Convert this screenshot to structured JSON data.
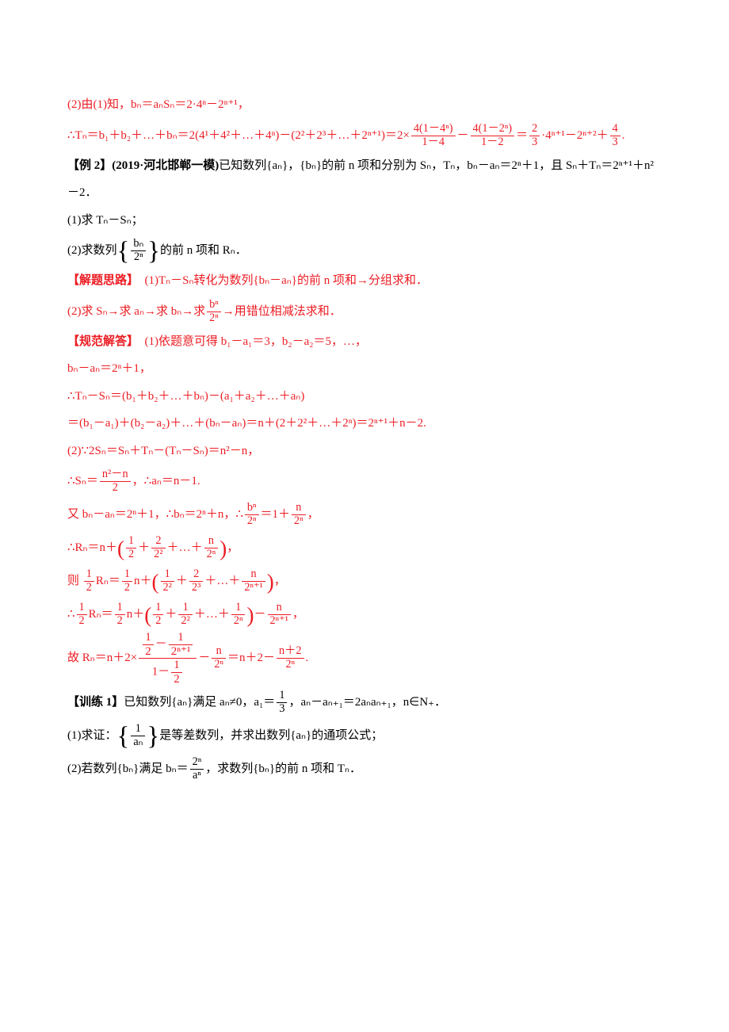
{
  "colors": {
    "red": "#ec1d24",
    "black": "#000000",
    "background": "#ffffff"
  },
  "typography": {
    "base_fontsize": 15,
    "font_family": "SimSun/宋体",
    "line_height": 2.3,
    "sub_sup_scale": 0.7
  },
  "content": {
    "l1": "(2)由(1)知，bₙ＝aₙSₙ＝2·4ⁿ－2ⁿ⁺¹，",
    "l2_prefix": "∴Tₙ＝b₁＋b₂＋…＋bₙ＝2(4¹＋4²＋…＋4ⁿ)－(2²＋2³＋…＋2ⁿ⁺¹)＝2×",
    "l2_f1_num": "4(1－4ⁿ)",
    "l2_f1_den": "1－4",
    "l2_mid1": "－",
    "l2_f2_num": "4(1－2ⁿ)",
    "l2_f2_den": "1－2",
    "l2_mid2": "＝",
    "l2_f3_num": "2",
    "l2_f3_den": "3",
    "l2_mid3": "·4ⁿ⁺¹－2ⁿ⁺²＋",
    "l2_f4_num": "4",
    "l2_f4_den": "3",
    "l2_tail": ".",
    "ex2_label": "【例 2】(2019·河北邯郸一模)",
    "ex2_body1": "已知数列{aₙ}，{bₙ}的前 n 项和分别为 Sₙ，Tₙ，bₙ－aₙ＝2ⁿ＋1，且 Sₙ＋Tₙ＝2ⁿ⁺¹＋n²－2．",
    "ex2_q1": "(1)求 Tₙ－Sₙ；",
    "ex2_q2_pre": "(2)求数列",
    "ex2_q2_frac_num": "bₙ",
    "ex2_q2_frac_den": "2ⁿ",
    "ex2_q2_post": "的前 n 项和 Rₙ．",
    "sol_idea_label": "【解题思路】",
    "sol_idea_1": "(1)Tₙ－Sₙ转化为数列{bₙ－aₙ}的前 n 项和→分组求和．",
    "sol_idea_2_pre": "(2)求 Sₙ→求 aₙ→求 bₙ→求",
    "sol_idea_2_num": "bⁿ",
    "sol_idea_2_den": "2ⁿ",
    "sol_idea_2_post": "→用错位相减法求和．",
    "std_label": "【规范解答】",
    "std_1": "(1)依题意可得 b₁－a₁＝3，b₂－a₂＝5，…，",
    "std_2": "bₙ－aₙ＝2ⁿ＋1，",
    "std_3": "∴Tₙ－Sₙ＝(b₁＋b₂＋…＋bₙ)－(a₁＋a₂＋…＋aₙ)",
    "std_4": "＝(b₁－a₁)＋(b₂－a₂)＋…＋(bₙ－aₙ)＝n＋(2＋2²＋…＋2ⁿ)＝2ⁿ⁺¹＋n－2.",
    "std_5": "(2)∵2Sₙ＝Sₙ＋Tₙ－(Tₙ－Sₙ)＝n²－n，",
    "std_6_pre": "∴Sₙ＝",
    "std_6_num": "n²－n",
    "std_6_den": "2",
    "std_6_post": "，∴aₙ＝n－1.",
    "std_7_pre": "又 bₙ－aₙ＝2ⁿ＋1，∴bₙ＝2ⁿ＋n，∴",
    "std_7_f1_num": "bⁿ",
    "std_7_f1_den": "2ⁿ",
    "std_7_mid": "＝1＋",
    "std_7_f2_num": "n",
    "std_7_f2_den": "2ⁿ",
    "std_7_post": "，",
    "std_8_pre": "∴Rₙ＝n＋",
    "std_8_f1_num": "1",
    "std_8_f1_den": "2",
    "std_8_m1": "＋",
    "std_8_f2_num": "2",
    "std_8_f2_den": "2²",
    "std_8_m2": "＋…＋",
    "std_8_f3_num": "n",
    "std_8_f3_den": "2ⁿ",
    "std_8_post": "，",
    "std_9_pre": "则 ",
    "std_9_h_num": "1",
    "std_9_h_den": "2",
    "std_9_mid1": "Rₙ＝",
    "std_9_h2_num": "1",
    "std_9_h2_den": "2",
    "std_9_mid2": "n＋",
    "std_9_f1_num": "1",
    "std_9_f1_den": "2²",
    "std_9_m1": "＋",
    "std_9_f2_num": "2",
    "std_9_f2_den": "2³",
    "std_9_m2": "＋…＋",
    "std_9_f3_num": "n",
    "std_9_f3_den": "2ⁿ⁺¹",
    "std_9_post": "，",
    "std_10_pre": "∴",
    "std_10_h_num": "1",
    "std_10_h_den": "2",
    "std_10_m1": "Rₙ＝",
    "std_10_h2_num": "1",
    "std_10_h2_den": "2",
    "std_10_m2": "n＋",
    "std_10_f1_num": "1",
    "std_10_f1_den": "2",
    "std_10_m3": "＋",
    "std_10_f2_num": "1",
    "std_10_f2_den": "2²",
    "std_10_m4": "＋…＋",
    "std_10_f3_num": "1",
    "std_10_f3_den": "2ⁿ",
    "std_10_m5": "－",
    "std_10_f4_num": "n",
    "std_10_f4_den": "2ⁿ⁺¹",
    "std_10_post": "，",
    "std_11_pre": "故 Rₙ＝n＋2×",
    "std_11_big_num_f1_num": "1",
    "std_11_big_num_f1_den": "2",
    "std_11_big_num_mid": "－",
    "std_11_big_num_f2_num": "1",
    "std_11_big_num_f2_den": "2ⁿ⁺¹",
    "std_11_big_den_pre": "1－",
    "std_11_big_den_f_num": "1",
    "std_11_big_den_f_den": "2",
    "std_11_m1": "－",
    "std_11_f2_num": "n",
    "std_11_f2_den": "2ⁿ",
    "std_11_m2": "＝n＋2－",
    "std_11_f3_num": "n＋2",
    "std_11_f3_den": "2ⁿ",
    "std_11_post": ".",
    "tr1_label": "【训练 1】",
    "tr1_body_pre": "已知数列{aₙ}满足 aₙ≠0，a₁＝",
    "tr1_f1_num": "1",
    "tr1_f1_den": "3",
    "tr1_body_post": "，aₙ－aₙ₊₁＝2aₙaₙ₊₁，n∈N₊．",
    "tr1_q1_pre": "(1)求证：",
    "tr1_q1_num": "1",
    "tr1_q1_den": "aₙ",
    "tr1_q1_post": "是等差数列，并求出数列{aₙ}的通项公式；",
    "tr1_q2_pre": "(2)若数列{bₙ}满足 bₙ＝",
    "tr1_q2_num": "2ⁿ",
    "tr1_q2_den": "aⁿ",
    "tr1_q2_post": "，求数列{bₙ}的前 n 项和 Tₙ．"
  }
}
